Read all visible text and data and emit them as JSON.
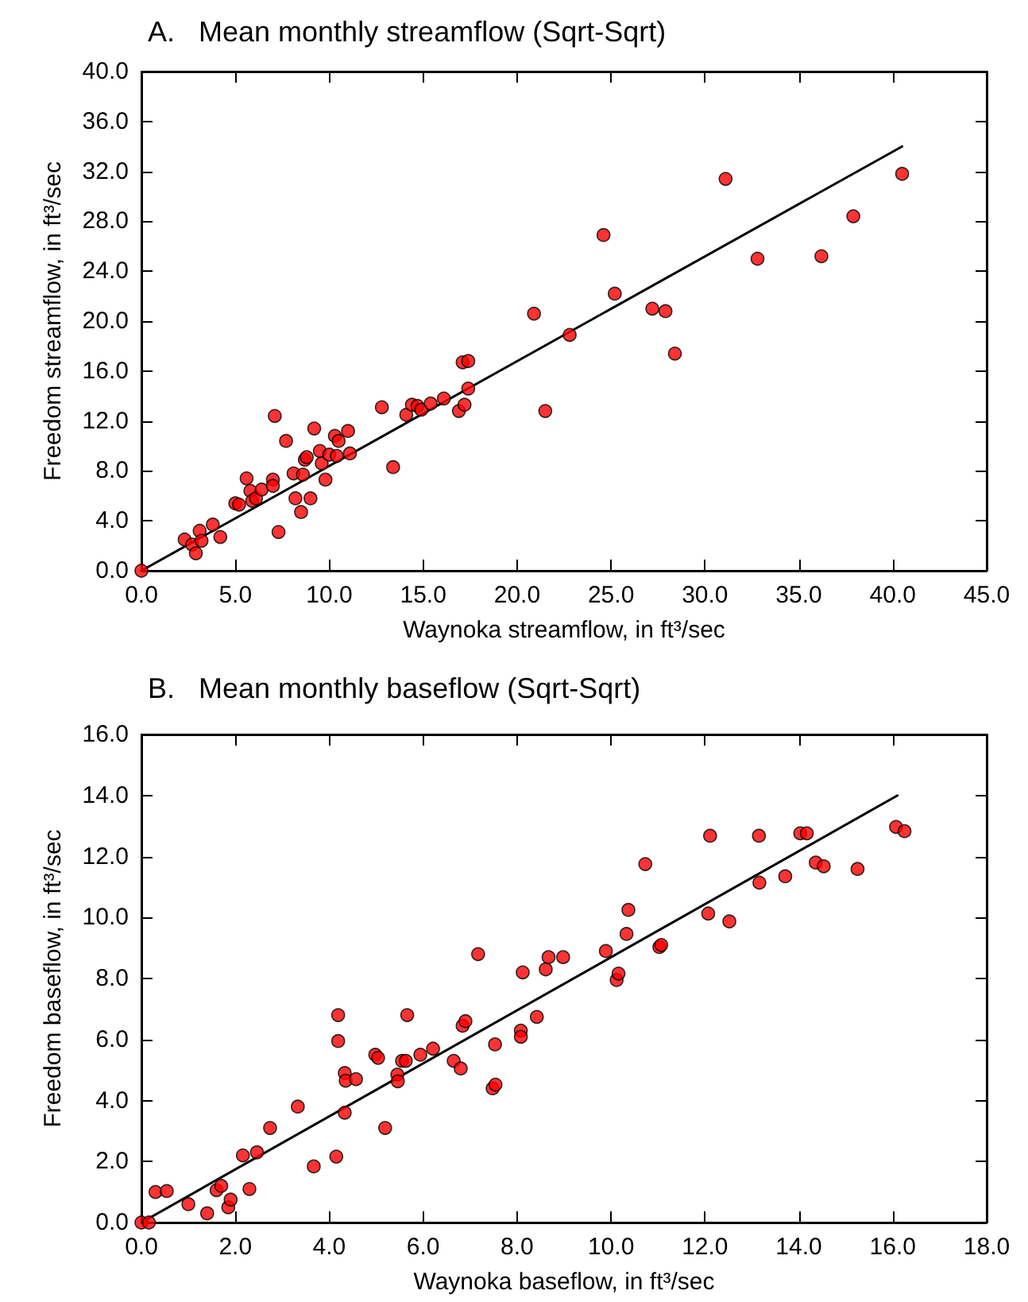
{
  "chart_data": [
    {
      "type": "scatter",
      "title": "A.   Mean monthly streamflow (Sqrt-Sqrt)",
      "xlabel": "Waynoka streamflow, in ft³/sec",
      "ylabel": "Freedom streamflow, in ft³/sec",
      "xlim": [
        0,
        45
      ],
      "ylim": [
        0,
        40
      ],
      "xticks": [
        {
          "value": 0,
          "label": "0.0"
        },
        {
          "value": 5,
          "label": "5.0"
        },
        {
          "value": 10,
          "label": "10.0"
        },
        {
          "value": 15,
          "label": "15.0"
        },
        {
          "value": 20,
          "label": "20.0"
        },
        {
          "value": 25,
          "label": "25.0"
        },
        {
          "value": 30,
          "label": "30.0"
        },
        {
          "value": 35,
          "label": "35.0"
        },
        {
          "value": 40,
          "label": "40.0"
        },
        {
          "value": 45,
          "label": "45.0"
        }
      ],
      "yticks": [
        {
          "value": 0,
          "label": "0.0"
        },
        {
          "value": 4,
          "label": "4.0"
        },
        {
          "value": 8,
          "label": "8.0"
        },
        {
          "value": 12,
          "label": "12.0"
        },
        {
          "value": 16,
          "label": "16.0"
        },
        {
          "value": 20,
          "label": "20.0"
        },
        {
          "value": 24,
          "label": "24.0"
        },
        {
          "value": 28,
          "label": "28.0"
        },
        {
          "value": 32,
          "label": "32.0"
        },
        {
          "value": 36,
          "label": "36.0"
        },
        {
          "value": 40,
          "label": "40.0"
        }
      ],
      "grid": false,
      "marker": "circle",
      "series": [
        {
          "color": "#ff0000",
          "x": [
            0,
            2.3,
            2.7,
            3.1,
            3.2,
            2.9,
            3.8,
            4.2,
            5.0,
            5.2,
            5.6,
            5.8,
            5.9,
            6.1,
            6.4,
            7.0,
            7.0,
            7.1,
            7.3,
            7.7,
            8.1,
            8.2,
            8.5,
            8.6,
            8.7,
            8.8,
            9.0,
            9.2,
            9.5,
            9.6,
            9.8,
            10.0,
            10.3,
            10.4,
            10.5,
            11.0,
            11.1,
            12.8,
            13.4,
            14.1,
            14.4,
            14.7,
            14.9,
            15.4,
            16.1,
            16.9,
            17.2,
            17.1,
            17.4,
            17.4,
            20.9,
            21.5,
            22.8,
            24.6,
            25.2,
            27.2,
            27.9,
            28.4,
            31.1,
            32.8,
            36.2,
            37.9,
            40.5
          ],
          "values": [
            0,
            2.5,
            2.1,
            3.2,
            2.4,
            1.4,
            3.7,
            2.7,
            5.4,
            5.3,
            7.4,
            6.4,
            5.6,
            5.8,
            6.5,
            7.3,
            6.8,
            12.4,
            3.1,
            10.4,
            7.8,
            5.8,
            4.7,
            7.7,
            8.9,
            9.1,
            5.8,
            11.4,
            9.6,
            8.6,
            7.3,
            9.3,
            10.8,
            9.2,
            10.4,
            11.2,
            9.4,
            13.1,
            8.3,
            12.5,
            13.3,
            13.2,
            12.9,
            13.4,
            13.8,
            12.8,
            13.3,
            16.7,
            16.8,
            14.6,
            20.6,
            12.8,
            18.9,
            26.9,
            22.2,
            21.0,
            20.8,
            17.4,
            31.4,
            25.0,
            25.2,
            28.4,
            31.8
          ]
        },
        {
          "type": "line",
          "color": "#000000",
          "marker": "none",
          "line_style": "solid",
          "x": [
            0,
            40.5
          ],
          "values": [
            0,
            34.0
          ]
        }
      ]
    },
    {
      "type": "scatter",
      "title": "B.   Mean monthly baseflow (Sqrt-Sqrt)",
      "xlabel": "Waynoka baseflow, in ft³/sec",
      "ylabel": "Freedom baseflow, in ft³/sec",
      "xlim": [
        0,
        18
      ],
      "ylim": [
        0,
        16
      ],
      "xticks": [
        {
          "value": 0,
          "label": "0.0"
        },
        {
          "value": 2,
          "label": "2.0"
        },
        {
          "value": 4,
          "label": "4.0"
        },
        {
          "value": 6,
          "label": "6.0"
        },
        {
          "value": 8,
          "label": "8.0"
        },
        {
          "value": 10,
          "label": "10.0"
        },
        {
          "value": 12,
          "label": "12.0"
        },
        {
          "value": 14,
          "label": "14.0"
        },
        {
          "value": 16,
          "label": "16.0"
        },
        {
          "value": 18,
          "label": "18.0"
        }
      ],
      "yticks": [
        {
          "value": 0,
          "label": "0.0"
        },
        {
          "value": 2,
          "label": "2.0"
        },
        {
          "value": 4,
          "label": "4.0"
        },
        {
          "value": 6,
          "label": "6.0"
        },
        {
          "value": 8,
          "label": "8.0"
        },
        {
          "value": 10,
          "label": "10.0"
        },
        {
          "value": 12,
          "label": "12.0"
        },
        {
          "value": 14,
          "label": "14.0"
        },
        {
          "value": 16,
          "label": "16.0"
        }
      ],
      "grid": false,
      "marker": "circle",
      "series": [
        {
          "color": "#ff0000",
          "x": [
            0,
            0.16,
            0.3,
            0.54,
            1.0,
            1.4,
            1.6,
            1.7,
            1.85,
            1.9,
            2.16,
            2.3,
            2.46,
            2.74,
            3.33,
            3.67,
            4.15,
            4.19,
            4.19,
            4.33,
            4.33,
            4.35,
            4.57,
            4.98,
            5.04,
            5.19,
            5.45,
            5.46,
            5.55,
            5.63,
            5.66,
            5.94,
            6.21,
            6.65,
            6.8,
            6.84,
            6.9,
            7.17,
            7.53,
            7.48,
            7.54,
            8.08,
            8.08,
            8.12,
            8.42,
            8.61,
            8.67,
            8.98,
            9.89,
            10.12,
            10.16,
            10.33,
            10.37,
            10.73,
            11.03,
            11.07,
            12.07,
            12.11,
            12.52,
            13.15,
            13.16,
            13.71,
            14.03,
            14.17,
            14.36,
            14.53,
            15.25,
            16.07,
            16.25
          ],
          "values": [
            0,
            0,
            1.0,
            1.03,
            0.6,
            0.3,
            1.06,
            1.2,
            0.5,
            0.75,
            2.2,
            1.1,
            2.3,
            3.1,
            3.8,
            1.84,
            2.16,
            6.8,
            5.95,
            4.9,
            3.6,
            4.65,
            4.7,
            5.5,
            5.4,
            3.1,
            4.85,
            4.63,
            5.3,
            5.3,
            6.8,
            5.5,
            5.7,
            5.3,
            5.05,
            6.45,
            6.6,
            8.8,
            5.84,
            4.4,
            4.52,
            6.29,
            6.09,
            8.2,
            6.74,
            8.3,
            8.7,
            8.7,
            8.9,
            7.95,
            8.16,
            9.46,
            10.25,
            11.75,
            9.03,
            9.1,
            10.13,
            12.68,
            9.87,
            12.68,
            11.14,
            11.35,
            12.76,
            12.76,
            11.8,
            11.68,
            11.59,
            12.97,
            12.83
          ]
        },
        {
          "type": "line",
          "color": "#000000",
          "marker": "none",
          "line_style": "solid",
          "x": [
            0,
            16.1
          ],
          "values": [
            0,
            14.0
          ]
        }
      ]
    }
  ]
}
